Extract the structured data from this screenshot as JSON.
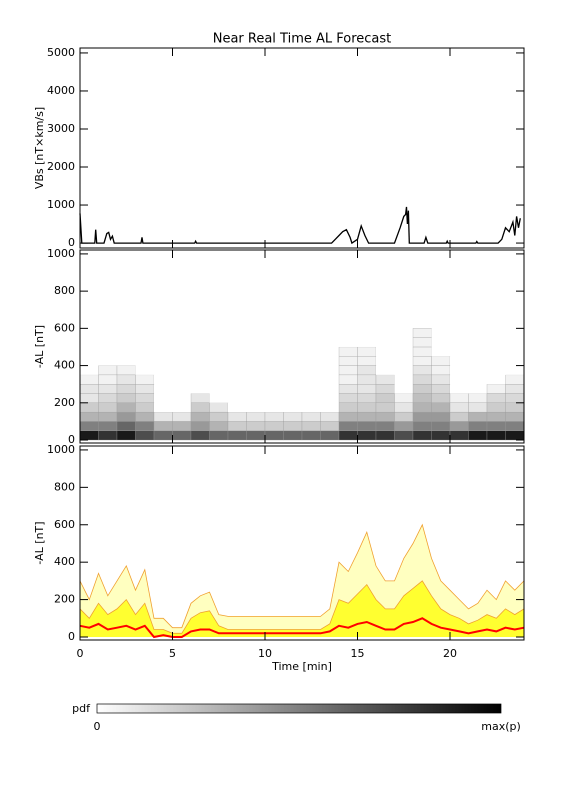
{
  "chart_data": [
    {
      "type": "line",
      "title": "Near Real Time AL Forecast",
      "y_label": "VBs [nT×km/s]",
      "color": "#000000",
      "xlim": [
        0,
        24
      ],
      "ylim": [
        -130,
        5130
      ],
      "yticks": [
        0,
        1000,
        2000,
        3000,
        4000,
        5000
      ],
      "x": [
        0,
        0.1,
        0.8,
        0.85,
        0.9,
        1.3,
        1.45,
        1.55,
        1.65,
        1.75,
        1.85,
        3.3,
        3.35,
        3.4,
        6.2,
        6.25,
        6.3,
        13.6,
        13.8,
        14.0,
        14.2,
        14.4,
        14.6,
        14.7,
        15.0,
        15.2,
        15.4,
        15.6,
        17.0,
        17.3,
        17.5,
        17.6,
        17.65,
        17.7,
        17.75,
        17.8,
        18.6,
        18.7,
        18.8,
        19.8,
        19.85,
        19.9,
        21.4,
        21.45,
        21.5,
        22.6,
        22.8,
        23.0,
        23.2,
        23.4,
        23.5,
        23.6,
        23.7,
        23.8
      ],
      "values": [
        780,
        0,
        0,
        350,
        0,
        0,
        250,
        280,
        100,
        180,
        0,
        0,
        150,
        0,
        0,
        50,
        0,
        0,
        100,
        200,
        300,
        350,
        150,
        0,
        100,
        450,
        200,
        0,
        0,
        400,
        700,
        750,
        950,
        500,
        850,
        0,
        0,
        150,
        0,
        0,
        50,
        0,
        0,
        40,
        0,
        0,
        100,
        400,
        300,
        550,
        200,
        700,
        400,
        650
      ]
    },
    {
      "type": "heatmap",
      "y_label": "-AL [nT]",
      "xlim": [
        0,
        24
      ],
      "ylim": [
        -16,
        1021
      ],
      "yticks": [
        0,
        200,
        400,
        600,
        800,
        1000
      ],
      "x_edges": [
        0,
        1,
        2,
        3,
        4,
        5,
        6,
        7,
        8,
        9,
        10,
        11,
        12,
        13,
        14,
        15,
        16,
        17,
        18,
        19,
        20,
        21,
        22,
        23,
        24
      ],
      "y_edges": [
        0,
        50,
        100,
        150,
        200,
        250,
        300,
        350,
        400,
        450,
        500,
        550,
        600
      ],
      "z": [
        [
          0.9,
          0.8,
          0.9,
          0.7,
          0.6,
          0.6,
          0.7,
          0.6,
          0.6,
          0.6,
          0.6,
          0.6,
          0.6,
          0.6,
          0.8,
          0.8,
          0.8,
          0.7,
          0.8,
          0.8,
          0.8,
          0.9,
          0.9,
          0.9
        ],
        [
          0.5,
          0.5,
          0.6,
          0.5,
          0.3,
          0.3,
          0.4,
          0.3,
          0.2,
          0.2,
          0.2,
          0.2,
          0.2,
          0.2,
          0.5,
          0.5,
          0.5,
          0.4,
          0.5,
          0.5,
          0.4,
          0.5,
          0.5,
          0.5
        ],
        [
          0.3,
          0.3,
          0.4,
          0.3,
          0.1,
          0.1,
          0.3,
          0.2,
          0.1,
          0.1,
          0.1,
          0.1,
          0.1,
          0.1,
          0.3,
          0.3,
          0.3,
          0.2,
          0.4,
          0.4,
          0.2,
          0.3,
          0.3,
          0.3
        ],
        [
          0.2,
          0.2,
          0.3,
          0.2,
          0,
          0,
          0.2,
          0.1,
          0,
          0,
          0,
          0,
          0,
          0,
          0.2,
          0.2,
          0.2,
          0.1,
          0.3,
          0.3,
          0.1,
          0.1,
          0.2,
          0.2
        ],
        [
          0.1,
          0.15,
          0.2,
          0.15,
          0,
          0,
          0.1,
          0,
          0,
          0,
          0,
          0,
          0,
          0,
          0.15,
          0.15,
          0.2,
          0.05,
          0.25,
          0.2,
          0.05,
          0.05,
          0.15,
          0.15
        ],
        [
          0.1,
          0.1,
          0.15,
          0.1,
          0,
          0,
          0,
          0,
          0,
          0,
          0,
          0,
          0,
          0,
          0.1,
          0.1,
          0.15,
          0,
          0.2,
          0.15,
          0,
          0,
          0.05,
          0.1
        ],
        [
          0.05,
          0.05,
          0.1,
          0.05,
          0,
          0,
          0,
          0,
          0,
          0,
          0,
          0,
          0,
          0,
          0.05,
          0.1,
          0.1,
          0,
          0.15,
          0.1,
          0,
          0,
          0,
          0.05
        ],
        [
          0,
          0.05,
          0.05,
          0,
          0,
          0,
          0,
          0,
          0,
          0,
          0,
          0,
          0,
          0,
          0.05,
          0.1,
          0,
          0,
          0.1,
          0.05,
          0,
          0,
          0,
          0
        ],
        [
          0,
          0,
          0,
          0,
          0,
          0,
          0,
          0,
          0,
          0,
          0,
          0,
          0,
          0,
          0.05,
          0.05,
          0,
          0,
          0.05,
          0.05,
          0,
          0,
          0,
          0
        ],
        [
          0,
          0,
          0,
          0,
          0,
          0,
          0,
          0,
          0,
          0,
          0,
          0,
          0,
          0,
          0.05,
          0.05,
          0,
          0,
          0.05,
          0,
          0,
          0,
          0,
          0
        ],
        [
          0,
          0,
          0,
          0,
          0,
          0,
          0,
          0,
          0,
          0,
          0,
          0,
          0,
          0,
          0,
          0,
          0,
          0,
          0.05,
          0,
          0,
          0,
          0,
          0
        ],
        [
          0,
          0,
          0,
          0,
          0,
          0,
          0,
          0,
          0,
          0,
          0,
          0,
          0,
          0,
          0,
          0,
          0,
          0,
          0.05,
          0,
          0,
          0,
          0,
          0
        ]
      ],
      "colorbar": {
        "label": "pdf",
        "min_label": "0",
        "max_label": "max(p)"
      }
    },
    {
      "type": "area",
      "y_label": "-AL [nT]",
      "x_label": "Time [min]",
      "xlim": [
        0,
        24
      ],
      "xticks": [
        0,
        5,
        10,
        15,
        20
      ],
      "ylim": [
        -16,
        1021
      ],
      "yticks": [
        0,
        200,
        400,
        600,
        800,
        1000
      ],
      "x": [
        0,
        0.5,
        1,
        1.5,
        2,
        2.5,
        3,
        3.5,
        4,
        4.5,
        5,
        5.5,
        6,
        6.5,
        7,
        7.5,
        8,
        8.5,
        9,
        9.5,
        10,
        10.5,
        11,
        11.5,
        12,
        12.5,
        13,
        13.5,
        14,
        14.5,
        15,
        15.5,
        16,
        16.5,
        17,
        17.5,
        18,
        18.5,
        19,
        19.5,
        20,
        20.5,
        21,
        21.5,
        22,
        22.5,
        23,
        23.5,
        24
      ],
      "series": [
        {
          "color": "#ffffc0",
          "line_color": "#f0a030",
          "values": [
            300,
            200,
            340,
            220,
            300,
            380,
            250,
            360,
            100,
            100,
            50,
            50,
            180,
            220,
            240,
            120,
            110,
            110,
            110,
            110,
            110,
            110,
            110,
            110,
            110,
            110,
            110,
            150,
            400,
            350,
            450,
            560,
            380,
            300,
            300,
            420,
            500,
            600,
            420,
            300,
            250,
            200,
            150,
            180,
            250,
            200,
            300,
            250,
            300
          ]
        },
        {
          "color": "#ffff30",
          "line_color": "#f0a030",
          "values": [
            150,
            100,
            180,
            120,
            150,
            200,
            120,
            180,
            40,
            40,
            20,
            20,
            100,
            130,
            140,
            60,
            40,
            40,
            40,
            40,
            40,
            40,
            40,
            40,
            40,
            40,
            40,
            70,
            200,
            180,
            230,
            280,
            200,
            150,
            150,
            220,
            260,
            300,
            220,
            150,
            120,
            100,
            70,
            90,
            120,
            100,
            150,
            120,
            150
          ]
        },
        {
          "color": "none",
          "line_color": "#ff0000",
          "values": [
            60,
            50,
            70,
            40,
            50,
            60,
            40,
            60,
            0,
            10,
            0,
            0,
            30,
            40,
            40,
            20,
            20,
            20,
            20,
            20,
            20,
            20,
            20,
            20,
            20,
            20,
            20,
            30,
            60,
            50,
            70,
            80,
            60,
            40,
            40,
            70,
            80,
            100,
            70,
            50,
            40,
            30,
            20,
            30,
            40,
            30,
            50,
            40,
            50
          ]
        }
      ]
    }
  ]
}
